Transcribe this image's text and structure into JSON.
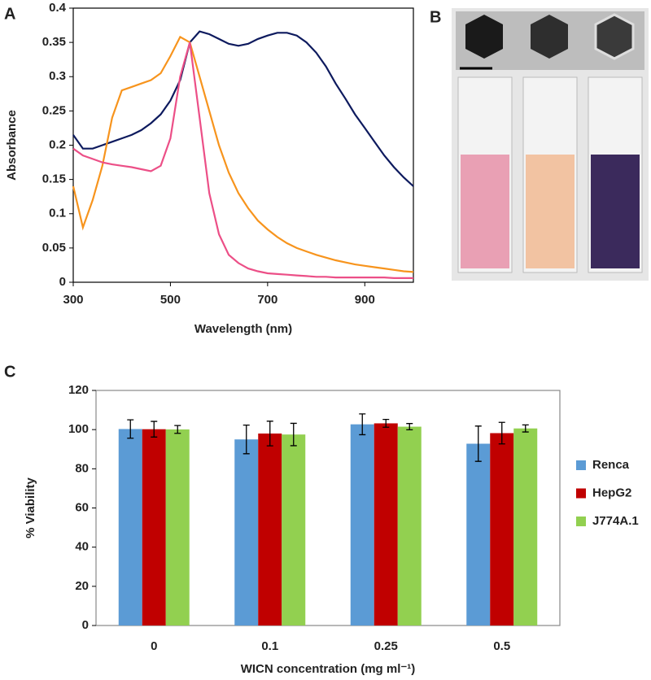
{
  "chart_data": [
    {
      "type": "line",
      "label": "A",
      "x_label": "Wavelength (nm)",
      "y_label": "Absorbance",
      "x": [
        300,
        320,
        340,
        360,
        380,
        400,
        420,
        440,
        460,
        480,
        500,
        520,
        540,
        560,
        580,
        600,
        620,
        640,
        660,
        680,
        700,
        720,
        740,
        760,
        780,
        800,
        820,
        840,
        860,
        880,
        900,
        920,
        940,
        960,
        980,
        1000
      ],
      "series": [
        {
          "color": "#0d1a5e",
          "values": [
            0.215,
            0.195,
            0.195,
            0.2,
            0.205,
            0.21,
            0.215,
            0.222,
            0.232,
            0.245,
            0.265,
            0.295,
            0.35,
            0.366,
            0.362,
            0.355,
            0.348,
            0.345,
            0.348,
            0.355,
            0.36,
            0.364,
            0.364,
            0.36,
            0.35,
            0.335,
            0.315,
            0.29,
            0.268,
            0.245,
            0.225,
            0.205,
            0.185,
            0.168,
            0.153,
            0.14
          ]
        },
        {
          "color": "#f7941d",
          "values": [
            0.14,
            0.08,
            0.12,
            0.17,
            0.24,
            0.28,
            0.285,
            0.29,
            0.295,
            0.305,
            0.33,
            0.358,
            0.35,
            0.3,
            0.25,
            0.2,
            0.16,
            0.13,
            0.108,
            0.09,
            0.077,
            0.066,
            0.057,
            0.05,
            0.045,
            0.04,
            0.036,
            0.032,
            0.029,
            0.026,
            0.024,
            0.022,
            0.02,
            0.018,
            0.016,
            0.015
          ]
        },
        {
          "color": "#ec4f87",
          "values": [
            0.195,
            0.185,
            0.18,
            0.175,
            0.172,
            0.17,
            0.168,
            0.165,
            0.162,
            0.17,
            0.21,
            0.3,
            0.35,
            0.24,
            0.13,
            0.07,
            0.04,
            0.028,
            0.02,
            0.016,
            0.013,
            0.012,
            0.011,
            0.01,
            0.009,
            0.008,
            0.008,
            0.007,
            0.007,
            0.007,
            0.007,
            0.007,
            0.007,
            0.006,
            0.006,
            0.006
          ]
        }
      ],
      "xlim": [
        300,
        1000
      ],
      "xticks": [
        300,
        500,
        700,
        900
      ],
      "ylim": [
        0,
        0.4
      ],
      "yticks": [
        0,
        0.05,
        0.1,
        0.15,
        0.2,
        0.25,
        0.3,
        0.35,
        0.4
      ],
      "grid": false
    },
    {
      "type": "bar",
      "label": "C",
      "x_label": "WICN concentration (mg ml⁻¹)",
      "y_label": "% Viability",
      "categories": [
        "0",
        "0.1",
        "0.25",
        "0.5"
      ],
      "series": [
        {
          "name": "Renca",
          "color": "#5b9bd5",
          "values": [
            100.3,
            95,
            102.7,
            92.8
          ],
          "errors": [
            4.7,
            7.3,
            5.3,
            9
          ]
        },
        {
          "name": "HepG2",
          "color": "#c00000",
          "values": [
            100.2,
            98,
            103.2,
            98.2
          ],
          "errors": [
            4,
            6.3,
            2,
            5.5
          ]
        },
        {
          "name": "J774A.1",
          "color": "#92d050",
          "values": [
            100.1,
            97.5,
            101.5,
            100.6
          ],
          "errors": [
            2,
            5.7,
            1.6,
            1.8
          ]
        }
      ],
      "ylim": [
        0,
        120
      ],
      "yticks": [
        0,
        20,
        40,
        60,
        80,
        100,
        120
      ],
      "grid": false,
      "legend": "right"
    }
  ],
  "panel_b": {
    "label": "B"
  }
}
